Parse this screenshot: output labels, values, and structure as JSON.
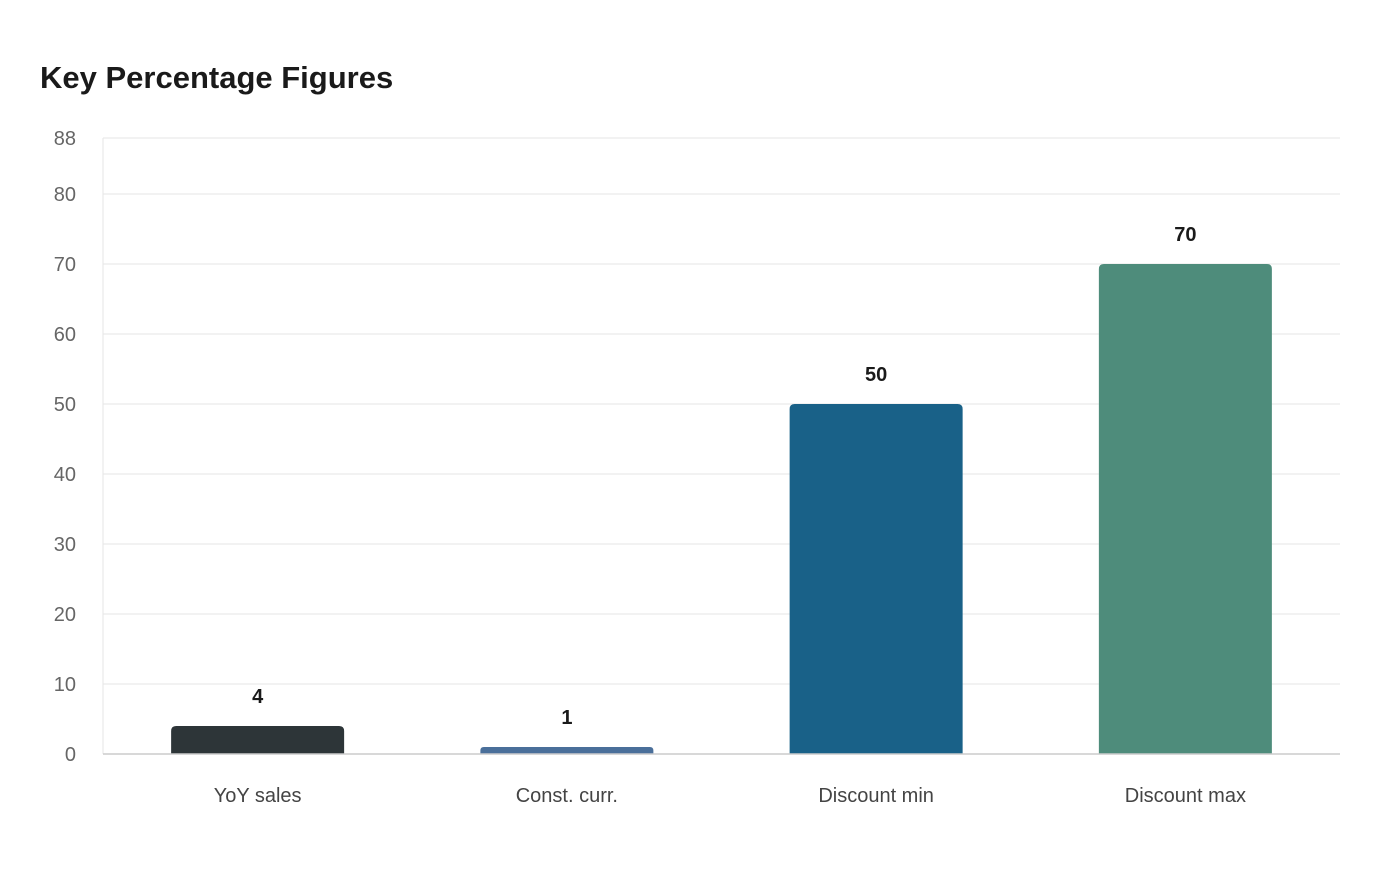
{
  "chart_data": {
    "type": "bar",
    "title": "Key Percentage Figures",
    "xlabel": "",
    "ylabel": "",
    "categories": [
      "YoY sales",
      "Const. curr.",
      "Discount min",
      "Discount max"
    ],
    "values": [
      4,
      1,
      50,
      70
    ],
    "colors": [
      "#2d3538",
      "#4a6f9a",
      "#196188",
      "#4e8c7b"
    ],
    "ylim": [
      0,
      88
    ],
    "yticks": [
      0,
      10,
      20,
      30,
      40,
      50,
      60,
      70,
      80,
      88
    ],
    "grid": true,
    "legend": "none"
  }
}
